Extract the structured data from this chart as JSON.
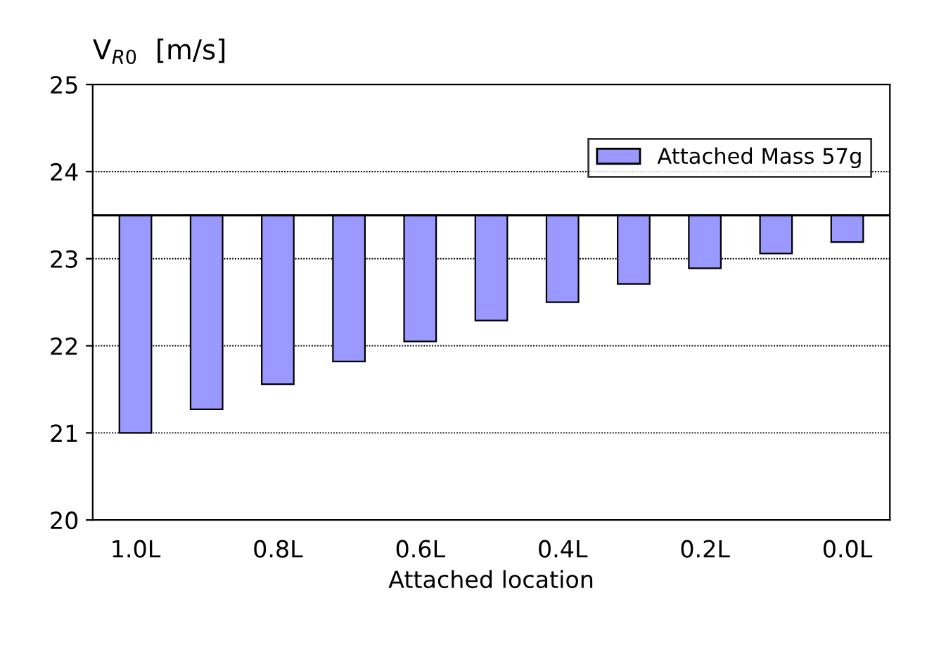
{
  "chart_data": {
    "type": "bar",
    "xlabel": "Attached location",
    "ylabel": "V$_{R0}$  [m/s]",
    "categories": [
      "1.0L",
      null,
      "0.8L",
      null,
      "0.6L",
      null,
      "0.4L",
      null,
      "0.2L",
      null,
      "0.0L"
    ],
    "series": [
      {
        "name": "Attached Mass 57g",
        "color": "#9999ff",
        "base": [
          23.5,
          23.5,
          23.5,
          23.5,
          23.5,
          23.5,
          23.5,
          23.5,
          23.5,
          23.5,
          23.5
        ],
        "values": [
          -2.5,
          -2.23,
          -1.94,
          -1.68,
          -1.45,
          -1.21,
          -1.0,
          -0.79,
          -0.61,
          -0.44,
          -0.31
        ]
      }
    ],
    "ylim": [
      20,
      25
    ],
    "yticks": [
      20,
      21,
      22,
      23,
      24,
      25
    ],
    "grid": "y",
    "legend": "top right",
    "ref_lines": [
      {
        "axis": "y",
        "value": 23.5,
        "color": "#000000",
        "line_style": "solid"
      }
    ]
  }
}
